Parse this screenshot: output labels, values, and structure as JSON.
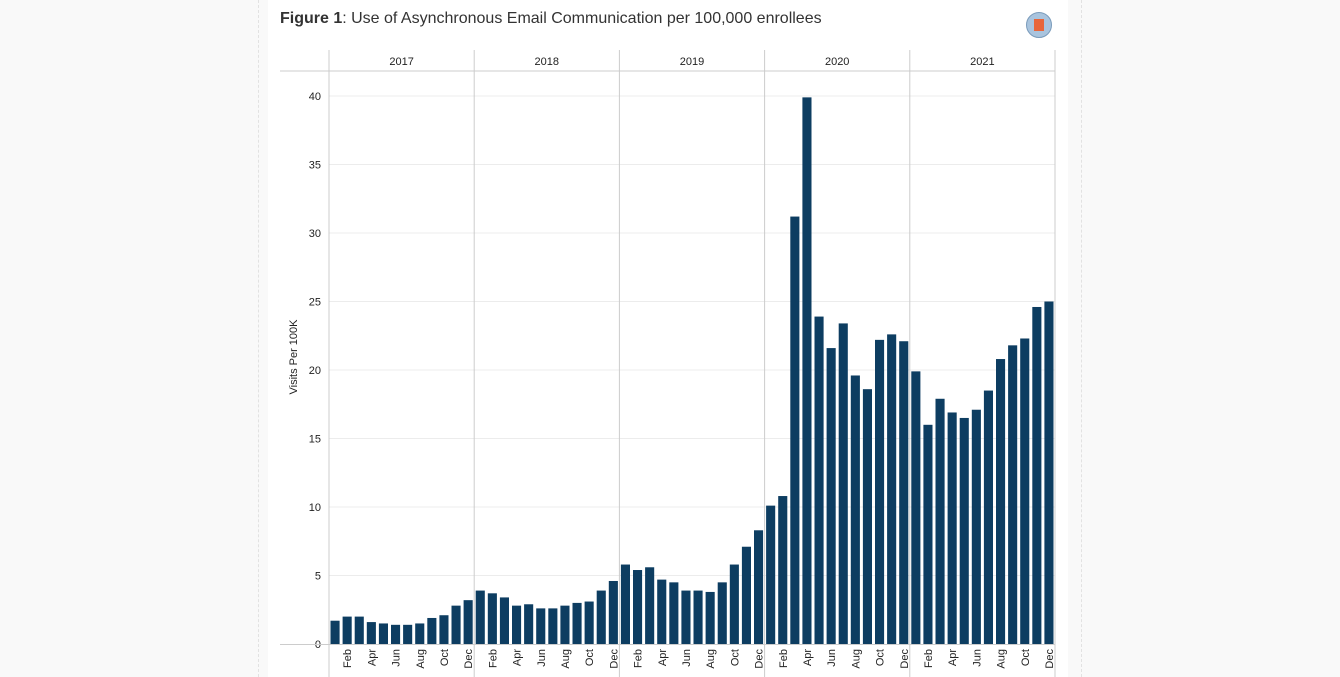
{
  "title_bold": "Figure 1",
  "title_rest": ": Use of Asynchronous Email Communication per 100,000 enrollees",
  "colors": {
    "bar": "#0d3d61",
    "grid": "#ececec",
    "divider": "#cccccc"
  },
  "icon": "chart-logo-icon",
  "chart_data": {
    "type": "bar",
    "title": "Use of Asynchronous Email Communication per 100,000 enrollees",
    "ylabel": "Visits Per 100K",
    "ylim": [
      0,
      42
    ],
    "yticks": [
      0,
      5,
      10,
      15,
      20,
      25,
      30,
      35,
      40
    ],
    "grid": true,
    "years": [
      "2017",
      "2018",
      "2019",
      "2020",
      "2021"
    ],
    "month_labels": [
      "Feb",
      "Apr",
      "Jun",
      "Aug",
      "Oct",
      "Dec"
    ],
    "months": [
      "Jan",
      "Feb",
      "Mar",
      "Apr",
      "May",
      "Jun",
      "Jul",
      "Aug",
      "Sep",
      "Oct",
      "Nov",
      "Dec"
    ],
    "values": {
      "2017": [
        1.7,
        2.0,
        2.0,
        1.6,
        1.5,
        1.4,
        1.4,
        1.5,
        1.9,
        2.1,
        2.8,
        3.2
      ],
      "2018": [
        3.9,
        3.7,
        3.4,
        2.8,
        2.9,
        2.6,
        2.6,
        2.8,
        3.0,
        3.1,
        3.9,
        4.6
      ],
      "2019": [
        5.8,
        5.4,
        5.6,
        4.7,
        4.5,
        3.9,
        3.9,
        3.8,
        4.5,
        5.8,
        7.1,
        8.3
      ],
      "2020": [
        10.1,
        10.8,
        31.2,
        39.9,
        23.9,
        21.6,
        23.4,
        19.6,
        18.6,
        22.2,
        22.6,
        22.1
      ],
      "2021": [
        19.9,
        16.0,
        17.9,
        16.9,
        16.5,
        17.1,
        18.5,
        20.8,
        21.8,
        22.3,
        24.6,
        25.0
      ]
    }
  }
}
